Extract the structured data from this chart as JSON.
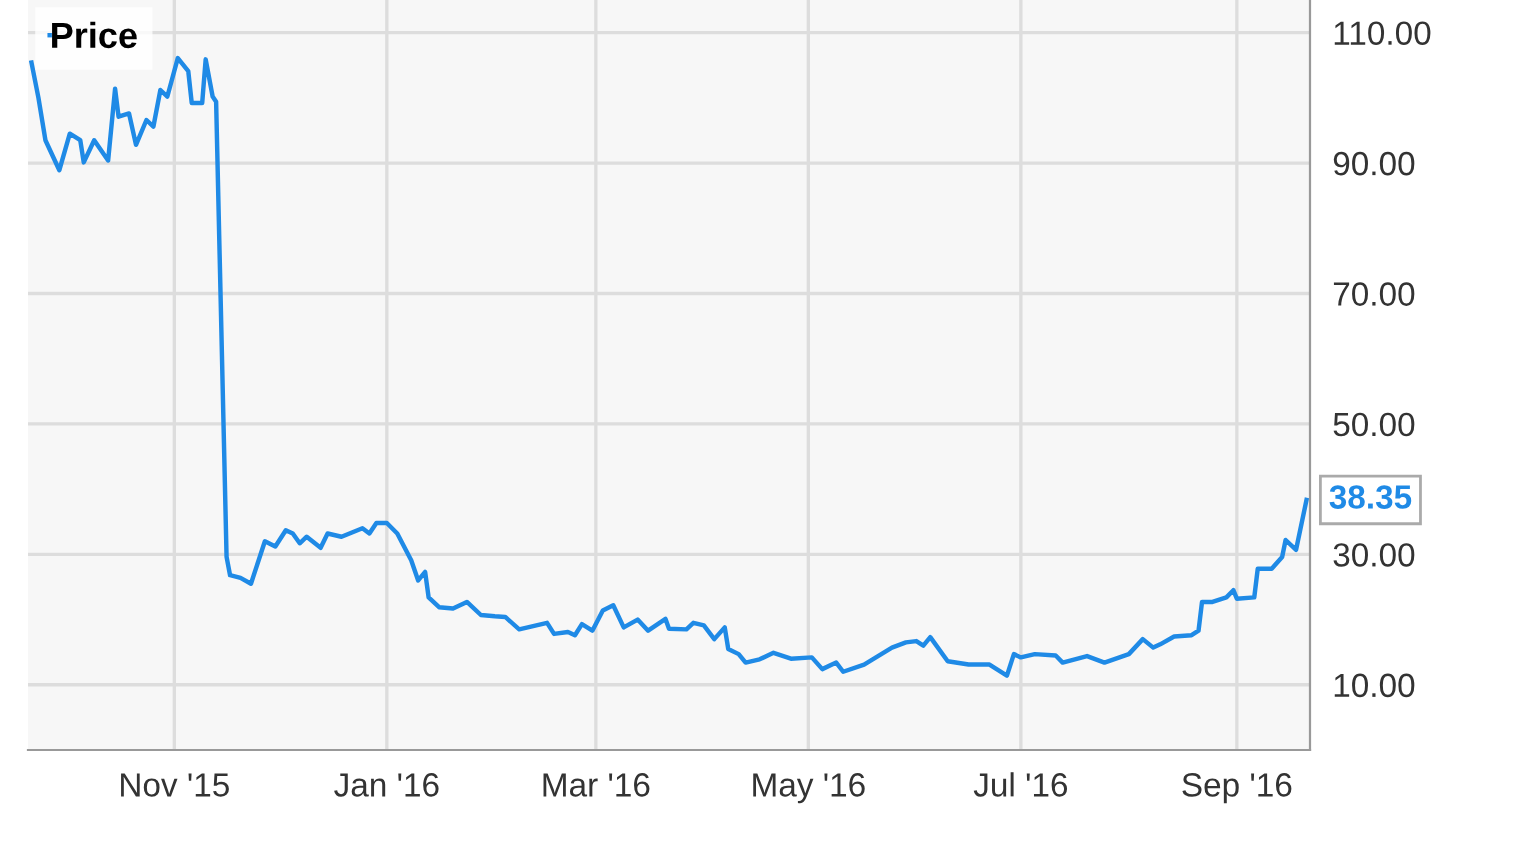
{
  "chart_data": {
    "type": "line",
    "legend": "top left",
    "grid": true,
    "xlim": [
      "2015-09-20",
      "2016-09-22"
    ],
    "ylim": [
      0,
      115
    ],
    "yticks": [
      {
        "value": 10,
        "label": "10.00"
      },
      {
        "value": 30,
        "label": "30.00"
      },
      {
        "value": 50,
        "label": "50.00"
      },
      {
        "value": 70,
        "label": "70.00"
      },
      {
        "value": 90,
        "label": "90.00"
      },
      {
        "value": 110,
        "label": "110.00"
      }
    ],
    "xticks": [
      {
        "value": "2015-11-01",
        "label": "Nov '15"
      },
      {
        "value": "2016-01-01",
        "label": "Jan '16"
      },
      {
        "value": "2016-03-01",
        "label": "Mar '16"
      },
      {
        "value": "2016-05-01",
        "label": "May '16"
      },
      {
        "value": "2016-07-01",
        "label": "Jul '16"
      },
      {
        "value": "2016-09-01",
        "label": "Sep '16"
      }
    ],
    "annotations": [
      {
        "text": "38.35",
        "x": "2016-09-21",
        "y": 38.35
      }
    ],
    "series": [
      {
        "name": "Price",
        "color": "#1f8ae6",
        "x": [
          "2015-09-21",
          "2015-09-23",
          "2015-09-25",
          "2015-09-29",
          "2015-10-02",
          "2015-10-05",
          "2015-10-06",
          "2015-10-09",
          "2015-10-13",
          "2015-10-15",
          "2015-10-16",
          "2015-10-19",
          "2015-10-21",
          "2015-10-24",
          "2015-10-26",
          "2015-10-28",
          "2015-10-30",
          "2015-11-02",
          "2015-11-05",
          "2015-11-06",
          "2015-11-09",
          "2015-11-10",
          "2015-11-12",
          "2015-11-13",
          "2015-11-16",
          "2015-11-17",
          "2015-11-20",
          "2015-11-23",
          "2015-11-27",
          "2015-11-30",
          "2015-12-03",
          "2015-12-05",
          "2015-12-07",
          "2015-12-09",
          "2015-12-13",
          "2015-12-15",
          "2015-12-19",
          "2015-12-25",
          "2015-12-27",
          "2015-12-29",
          "2016-01-01",
          "2016-01-04",
          "2016-01-08",
          "2016-01-10",
          "2016-01-12",
          "2016-01-13",
          "2016-01-16",
          "2016-01-20",
          "2016-01-24",
          "2016-01-28",
          "2016-02-01",
          "2016-02-04",
          "2016-02-08",
          "2016-02-16",
          "2016-02-18",
          "2016-02-22",
          "2016-02-24",
          "2016-02-26",
          "2016-02-29",
          "2016-03-03",
          "2016-03-06",
          "2016-03-09",
          "2016-03-13",
          "2016-03-16",
          "2016-03-21",
          "2016-03-22",
          "2016-03-27",
          "2016-03-29",
          "2016-04-01",
          "2016-04-04",
          "2016-04-07",
          "2016-04-08",
          "2016-04-11",
          "2016-04-13",
          "2016-04-17",
          "2016-04-21",
          "2016-04-26",
          "2016-05-02",
          "2016-05-05",
          "2016-05-09",
          "2016-05-11",
          "2016-05-17",
          "2016-05-25",
          "2016-05-29",
          "2016-06-01",
          "2016-06-03",
          "2016-06-05",
          "2016-06-10",
          "2016-06-16",
          "2016-06-22",
          "2016-06-27",
          "2016-06-29",
          "2016-07-01",
          "2016-07-05",
          "2016-07-11",
          "2016-07-13",
          "2016-07-20",
          "2016-07-25",
          "2016-08-01",
          "2016-08-05",
          "2016-08-08",
          "2016-08-10",
          "2016-08-14",
          "2016-08-19",
          "2016-08-21",
          "2016-08-22",
          "2016-08-25",
          "2016-08-29",
          "2016-08-31",
          "2016-09-01",
          "2016-09-06",
          "2016-09-07",
          "2016-09-11",
          "2016-09-14",
          "2016-09-15",
          "2016-09-18",
          "2016-09-21"
        ],
        "values": [
          105.4,
          100.0,
          93.5,
          88.9,
          94.5,
          93.5,
          90.1,
          93.5,
          90.4,
          101.4,
          97.1,
          97.6,
          92.8,
          96.6,
          95.6,
          101.2,
          100.2,
          106.1,
          104.1,
          99.2,
          99.2,
          105.9,
          100.2,
          99.4,
          29.6,
          26.8,
          26.4,
          25.5,
          32.0,
          31.2,
          33.7,
          33.2,
          31.7,
          32.7,
          31.0,
          33.2,
          32.7,
          34.0,
          33.2,
          34.8,
          34.8,
          33.2,
          29.1,
          26.0,
          27.3,
          23.4,
          21.9,
          21.7,
          22.7,
          20.7,
          20.5,
          20.4,
          18.5,
          19.5,
          17.8,
          18.1,
          17.6,
          19.3,
          18.3,
          21.4,
          22.2,
          18.8,
          20.0,
          18.3,
          20.1,
          18.6,
          18.5,
          19.5,
          19.1,
          17.0,
          18.8,
          15.5,
          14.7,
          13.4,
          13.9,
          14.9,
          14.0,
          14.2,
          12.4,
          13.4,
          12.0,
          13.1,
          15.7,
          16.5,
          16.7,
          16.0,
          17.3,
          13.6,
          13.1,
          13.1,
          11.4,
          14.7,
          14.2,
          14.7,
          14.5,
          13.4,
          14.4,
          13.4,
          14.7,
          17.0,
          15.7,
          16.2,
          17.4,
          17.6,
          18.3,
          22.7,
          22.7,
          23.4,
          24.5,
          23.2,
          23.4,
          27.8,
          27.8,
          29.6,
          32.2,
          30.7,
          38.35
        ]
      }
    ]
  }
}
